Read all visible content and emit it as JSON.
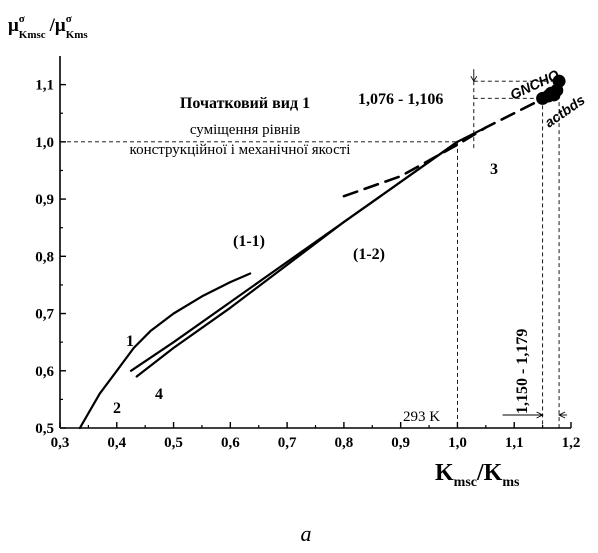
{
  "chart_data": {
    "type": "line",
    "title": "Початковий вид 1",
    "subtitle": [
      "суміщення рівнів",
      "конструкційної і механічної якості"
    ],
    "ylabel": {
      "main": "μ",
      "sup1": "σ",
      "sub1": "Kmsc",
      "slash": "/μ",
      "sup2": "σ",
      "sub2": "Kms"
    },
    "xlabel": {
      "main1": "K",
      "sub1": "msc",
      "slash": "/K",
      "sub2": "ms"
    },
    "xlim": [
      0.3,
      1.2
    ],
    "ylim": [
      0.5,
      1.15
    ],
    "x_ticks": [
      "0,3",
      "0,4",
      "0,5",
      "0,6",
      "0,7",
      "0,8",
      "0,9",
      "1,0",
      "1,1",
      "1,2"
    ],
    "y_ticks": [
      "0,5",
      "0,6",
      "0,7",
      "0,8",
      "0,9",
      "1,0",
      "1,1"
    ],
    "series": [
      {
        "name": "1",
        "style": "solid",
        "x": [
          0.335,
          0.37,
          0.4,
          0.43,
          0.46,
          0.5,
          0.55,
          0.6,
          0.635
        ],
        "y": [
          0.5,
          0.56,
          0.6,
          0.64,
          0.67,
          0.7,
          0.73,
          0.755,
          0.77
        ]
      },
      {
        "name": "2",
        "style": "solid",
        "x": [
          0.425,
          0.5,
          0.6,
          0.7,
          0.8,
          0.9,
          1.0,
          1.05
        ],
        "y": [
          0.6,
          0.65,
          0.72,
          0.79,
          0.86,
          0.93,
          1.0,
          1.025
        ]
      },
      {
        "name": "4",
        "style": "solid",
        "x": [
          0.435,
          0.5,
          0.6,
          0.7,
          0.8,
          0.9,
          1.0
        ],
        "y": [
          0.59,
          0.64,
          0.71,
          0.785,
          0.86,
          0.93,
          1.0
        ]
      },
      {
        "name": "3",
        "style": "dashed",
        "x": [
          0.8,
          0.9,
          1.0,
          1.05,
          1.1,
          1.15,
          1.18
        ],
        "y": [
          0.905,
          0.94,
          0.995,
          1.025,
          1.05,
          1.075,
          1.095
        ]
      }
    ],
    "points": [
      {
        "x": 1.15,
        "y": 1.076
      },
      {
        "x": 1.16,
        "y": 1.08
      },
      {
        "x": 1.165,
        "y": 1.085
      },
      {
        "x": 1.17,
        "y": 1.082
      },
      {
        "x": 1.175,
        "y": 1.09
      },
      {
        "x": 1.179,
        "y": 1.106
      }
    ],
    "point_labels": {
      "upper": "GNCHO",
      "lower": "actbds"
    },
    "reference_lines": {
      "x_293K": 1.0,
      "y_1": 1.0,
      "y_low": 1.076,
      "y_high": 1.106,
      "x_low": 1.15,
      "x_high": 1.179,
      "x_gap_tick": 1.02
    },
    "annotations": {
      "curve_1": "1",
      "curve_2": "2",
      "curve_3": "3",
      "curve_4": "4",
      "region_11": "(1-1)",
      "region_12": "(1-2)",
      "temp": "293 K",
      "y_range": "1,076 - 1,106",
      "x_range": "1,150 - 1,179"
    },
    "grid": false
  },
  "caption": "a"
}
